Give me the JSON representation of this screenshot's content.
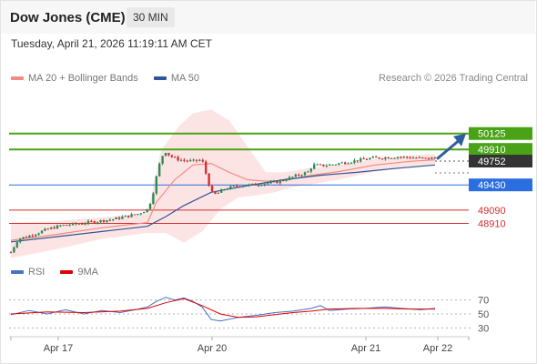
{
  "header": {
    "title": "Dow Jones (CME)",
    "timeframe": "30 MIN"
  },
  "datetime": "Tuesday, April 21, 2026 11:19:11 AM CET",
  "legend": {
    "bb_label": "MA 20 + Bollinger Bands",
    "ma50_label": "MA 50",
    "rsi_label": "RSI",
    "rsi_ma_label": "9MA",
    "credit": "Research © 2026 Trading Central"
  },
  "colors": {
    "bb_swatch": "#f28b82",
    "ma50": "#2f5597",
    "bollinger_fill": "#fde3e3",
    "candle_up": "#2e8b57",
    "candle_down": "#d32f2f",
    "target_green": "#4aa317",
    "support_blue": "#2a6ee0",
    "support_red": "#d32f2f",
    "current": "#333333",
    "rsi": "#4472c4",
    "rsi_ma": "#e00000",
    "arrow": "#2f5e9e"
  },
  "chart_data": [
    {
      "type": "candlestick",
      "y_scale": {
        "min": 48460,
        "max": 50700
      },
      "x_labels": [
        "Apr 17",
        "Apr 20",
        "Apr 21",
        "Apr 22"
      ],
      "levels": [
        {
          "value": 50125,
          "label": "50125",
          "kind": "target"
        },
        {
          "value": 49910,
          "label": "49910",
          "kind": "target"
        },
        {
          "value": 49752,
          "label": "49752",
          "kind": "current"
        },
        {
          "value": 49430,
          "label": "49430",
          "kind": "support"
        },
        {
          "value": 49090,
          "label": "49090",
          "kind": "support_red"
        },
        {
          "value": 48910,
          "label": "48910",
          "kind": "support_red"
        }
      ],
      "price_path": [
        [
          0,
          48520
        ],
        [
          8,
          48700
        ],
        [
          20,
          48740
        ],
        [
          40,
          48830
        ],
        [
          55,
          48880
        ],
        [
          70,
          48900
        ],
        [
          90,
          48930
        ],
        [
          110,
          48960
        ],
        [
          125,
          49000
        ],
        [
          140,
          49040
        ],
        [
          150,
          49100
        ],
        [
          155,
          49250
        ],
        [
          160,
          49550
        ],
        [
          165,
          49800
        ],
        [
          168,
          49850
        ],
        [
          170,
          49880
        ],
        [
          175,
          49820
        ],
        [
          182,
          49780
        ],
        [
          190,
          49760
        ],
        [
          200,
          49750
        ],
        [
          210,
          49770
        ],
        [
          220,
          49330
        ],
        [
          225,
          49300
        ],
        [
          235,
          49380
        ],
        [
          250,
          49420
        ],
        [
          265,
          49430
        ],
        [
          278,
          49450
        ],
        [
          290,
          49460
        ],
        [
          300,
          49500
        ],
        [
          310,
          49540
        ],
        [
          320,
          49580
        ],
        [
          326,
          49600
        ],
        [
          332,
          49700
        ],
        [
          340,
          49690
        ],
        [
          350,
          49700
        ],
        [
          365,
          49730
        ],
        [
          380,
          49760
        ],
        [
          395,
          49790
        ],
        [
          410,
          49800
        ],
        [
          425,
          49810
        ],
        [
          440,
          49800
        ],
        [
          455,
          49785
        ],
        [
          466,
          49795
        ]
      ],
      "ma50": [
        [
          0,
          48660
        ],
        [
          50,
          48730
        ],
        [
          100,
          48800
        ],
        [
          150,
          48870
        ],
        [
          170,
          49000
        ],
        [
          190,
          49150
        ],
        [
          220,
          49330
        ],
        [
          260,
          49420
        ],
        [
          300,
          49500
        ],
        [
          340,
          49560
        ],
        [
          380,
          49600
        ],
        [
          420,
          49650
        ],
        [
          466,
          49700
        ]
      ],
      "ma20": [
        [
          0,
          48680
        ],
        [
          50,
          48760
        ],
        [
          100,
          48850
        ],
        [
          150,
          48920
        ],
        [
          160,
          49200
        ],
        [
          180,
          49500
        ],
        [
          200,
          49700
        ],
        [
          220,
          49720
        ],
        [
          240,
          49600
        ],
        [
          260,
          49500
        ],
        [
          280,
          49480
        ],
        [
          300,
          49490
        ],
        [
          330,
          49560
        ],
        [
          360,
          49610
        ],
        [
          400,
          49700
        ],
        [
          440,
          49750
        ],
        [
          466,
          49770
        ]
      ],
      "bollinger_upper": [
        [
          0,
          48920
        ],
        [
          50,
          48940
        ],
        [
          100,
          48990
        ],
        [
          150,
          49040
        ],
        [
          165,
          49900
        ],
        [
          185,
          50230
        ],
        [
          200,
          50400
        ],
        [
          220,
          50450
        ],
        [
          240,
          50300
        ],
        [
          260,
          49950
        ],
        [
          280,
          49600
        ],
        [
          300,
          49600
        ],
        [
          330,
          49660
        ],
        [
          360,
          49700
        ],
        [
          400,
          49780
        ],
        [
          440,
          49830
        ],
        [
          466,
          49850
        ]
      ],
      "bollinger_lower": [
        [
          0,
          48440
        ],
        [
          50,
          48560
        ],
        [
          100,
          48700
        ],
        [
          150,
          48780
        ],
        [
          170,
          48780
        ],
        [
          190,
          48650
        ],
        [
          210,
          48800
        ],
        [
          230,
          49100
        ],
        [
          250,
          49260
        ],
        [
          270,
          49290
        ],
        [
          290,
          49330
        ],
        [
          310,
          49400
        ],
        [
          330,
          49440
        ],
        [
          360,
          49500
        ],
        [
          400,
          49610
        ],
        [
          440,
          49670
        ],
        [
          466,
          49700
        ]
      ]
    },
    {
      "type": "line",
      "title": "RSI",
      "y_labels": [
        "70",
        "50",
        "30"
      ],
      "y_range": [
        20,
        80
      ],
      "rsi": [
        [
          0,
          49
        ],
        [
          20,
          55
        ],
        [
          40,
          50
        ],
        [
          60,
          56
        ],
        [
          80,
          50
        ],
        [
          100,
          55
        ],
        [
          120,
          52
        ],
        [
          140,
          57
        ],
        [
          150,
          60
        ],
        [
          160,
          68
        ],
        [
          170,
          74
        ],
        [
          180,
          70
        ],
        [
          190,
          73
        ],
        [
          200,
          68
        ],
        [
          210,
          60
        ],
        [
          220,
          42
        ],
        [
          230,
          40
        ],
        [
          250,
          45
        ],
        [
          270,
          48
        ],
        [
          290,
          52
        ],
        [
          310,
          54
        ],
        [
          330,
          58
        ],
        [
          340,
          62
        ],
        [
          350,
          55
        ],
        [
          370,
          57
        ],
        [
          390,
          58
        ],
        [
          410,
          60
        ],
        [
          430,
          58
        ],
        [
          450,
          56
        ],
        [
          466,
          58
        ]
      ],
      "rsi_ma": [
        [
          0,
          50
        ],
        [
          40,
          53
        ],
        [
          80,
          52
        ],
        [
          120,
          54
        ],
        [
          150,
          58
        ],
        [
          170,
          66
        ],
        [
          190,
          72
        ],
        [
          210,
          62
        ],
        [
          230,
          50
        ],
        [
          250,
          45
        ],
        [
          270,
          46
        ],
        [
          290,
          49
        ],
        [
          310,
          52
        ],
        [
          330,
          54
        ],
        [
          350,
          57
        ],
        [
          380,
          58
        ],
        [
          410,
          58
        ],
        [
          440,
          57
        ],
        [
          466,
          57
        ]
      ]
    }
  ]
}
